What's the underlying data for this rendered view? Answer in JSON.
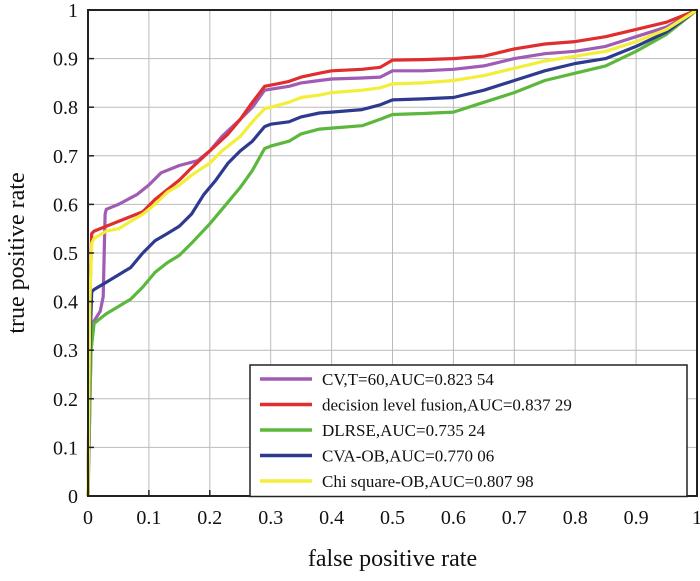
{
  "chart_data": {
    "type": "line",
    "xlabel": "false positive rate",
    "ylabel": "true positive rate",
    "xlim": [
      0,
      1
    ],
    "ylim": [
      0,
      1
    ],
    "x_ticks": [
      0,
      0.1,
      0.2,
      0.3,
      0.4,
      0.5,
      0.6,
      0.7,
      0.8,
      0.9,
      1
    ],
    "y_ticks": [
      0,
      0.1,
      0.2,
      0.3,
      0.4,
      0.5,
      0.6,
      0.7,
      0.8,
      0.9,
      1
    ],
    "x_tick_labels": [
      "0",
      "0.1",
      "0.2",
      "0.3",
      "0.4",
      "0.5",
      "0.6",
      "0.7",
      "0.8",
      "0.9",
      "1"
    ],
    "y_tick_labels": [
      "0",
      "0.1",
      "0.2",
      "0.3",
      "0.4",
      "0.5",
      "0.6",
      "0.7",
      "0.8",
      "0.9",
      "1"
    ],
    "grid": true,
    "legend_position": "bottom-right",
    "series": [
      {
        "name": "CV,T=60,AUC=0.823 54",
        "color": "#a05bb4",
        "points": [
          [
            0,
            0
          ],
          [
            0.005,
            0.3
          ],
          [
            0.01,
            0.36
          ],
          [
            0.015,
            0.37
          ],
          [
            0.02,
            0.38
          ],
          [
            0.025,
            0.41
          ],
          [
            0.028,
            0.58
          ],
          [
            0.03,
            0.59
          ],
          [
            0.05,
            0.6
          ],
          [
            0.08,
            0.62
          ],
          [
            0.1,
            0.64
          ],
          [
            0.12,
            0.665
          ],
          [
            0.15,
            0.68
          ],
          [
            0.18,
            0.69
          ],
          [
            0.2,
            0.71
          ],
          [
            0.22,
            0.74
          ],
          [
            0.25,
            0.775
          ],
          [
            0.27,
            0.8
          ],
          [
            0.29,
            0.835
          ],
          [
            0.3,
            0.837
          ],
          [
            0.33,
            0.843
          ],
          [
            0.35,
            0.85
          ],
          [
            0.38,
            0.855
          ],
          [
            0.4,
            0.858
          ],
          [
            0.45,
            0.86
          ],
          [
            0.48,
            0.862
          ],
          [
            0.5,
            0.875
          ],
          [
            0.55,
            0.875
          ],
          [
            0.6,
            0.878
          ],
          [
            0.65,
            0.885
          ],
          [
            0.7,
            0.9
          ],
          [
            0.75,
            0.91
          ],
          [
            0.8,
            0.915
          ],
          [
            0.85,
            0.925
          ],
          [
            0.9,
            0.945
          ],
          [
            0.95,
            0.965
          ],
          [
            1,
            1
          ]
        ]
      },
      {
        "name": "decision level fusion,AUC=0.837 29",
        "color": "#e02d2d",
        "points": [
          [
            0,
            0
          ],
          [
            0.003,
            0.4
          ],
          [
            0.006,
            0.54
          ],
          [
            0.01,
            0.545
          ],
          [
            0.03,
            0.555
          ],
          [
            0.06,
            0.57
          ],
          [
            0.09,
            0.585
          ],
          [
            0.11,
            0.61
          ],
          [
            0.13,
            0.63
          ],
          [
            0.15,
            0.65
          ],
          [
            0.17,
            0.675
          ],
          [
            0.2,
            0.71
          ],
          [
            0.23,
            0.745
          ],
          [
            0.25,
            0.775
          ],
          [
            0.27,
            0.81
          ],
          [
            0.29,
            0.843
          ],
          [
            0.31,
            0.848
          ],
          [
            0.33,
            0.853
          ],
          [
            0.35,
            0.862
          ],
          [
            0.38,
            0.87
          ],
          [
            0.4,
            0.875
          ],
          [
            0.45,
            0.878
          ],
          [
            0.48,
            0.882
          ],
          [
            0.5,
            0.897
          ],
          [
            0.55,
            0.898
          ],
          [
            0.6,
            0.9
          ],
          [
            0.65,
            0.905
          ],
          [
            0.7,
            0.92
          ],
          [
            0.75,
            0.93
          ],
          [
            0.8,
            0.935
          ],
          [
            0.85,
            0.945
          ],
          [
            0.9,
            0.96
          ],
          [
            0.95,
            0.975
          ],
          [
            1,
            1
          ]
        ]
      },
      {
        "name": "DLRSE,AUC=0.735 24",
        "color": "#5cb83c",
        "points": [
          [
            0,
            0
          ],
          [
            0.005,
            0.3
          ],
          [
            0.01,
            0.355
          ],
          [
            0.015,
            0.36
          ],
          [
            0.03,
            0.375
          ],
          [
            0.05,
            0.39
          ],
          [
            0.07,
            0.405
          ],
          [
            0.09,
            0.43
          ],
          [
            0.11,
            0.46
          ],
          [
            0.13,
            0.48
          ],
          [
            0.15,
            0.495
          ],
          [
            0.17,
            0.52
          ],
          [
            0.2,
            0.56
          ],
          [
            0.22,
            0.59
          ],
          [
            0.25,
            0.635
          ],
          [
            0.27,
            0.67
          ],
          [
            0.29,
            0.715
          ],
          [
            0.3,
            0.72
          ],
          [
            0.33,
            0.73
          ],
          [
            0.35,
            0.745
          ],
          [
            0.38,
            0.755
          ],
          [
            0.4,
            0.757
          ],
          [
            0.45,
            0.762
          ],
          [
            0.48,
            0.775
          ],
          [
            0.5,
            0.785
          ],
          [
            0.55,
            0.787
          ],
          [
            0.6,
            0.79
          ],
          [
            0.65,
            0.81
          ],
          [
            0.7,
            0.83
          ],
          [
            0.75,
            0.855
          ],
          [
            0.8,
            0.87
          ],
          [
            0.85,
            0.885
          ],
          [
            0.9,
            0.915
          ],
          [
            0.95,
            0.95
          ],
          [
            1,
            1
          ]
        ]
      },
      {
        "name": "CVA-OB,AUC=0.770 06",
        "color": "#2e3a8f",
        "points": [
          [
            0,
            0
          ],
          [
            0.003,
            0.3
          ],
          [
            0.006,
            0.42
          ],
          [
            0.01,
            0.425
          ],
          [
            0.03,
            0.44
          ],
          [
            0.05,
            0.455
          ],
          [
            0.07,
            0.47
          ],
          [
            0.09,
            0.5
          ],
          [
            0.11,
            0.525
          ],
          [
            0.13,
            0.54
          ],
          [
            0.15,
            0.555
          ],
          [
            0.17,
            0.58
          ],
          [
            0.19,
            0.62
          ],
          [
            0.21,
            0.65
          ],
          [
            0.23,
            0.685
          ],
          [
            0.25,
            0.71
          ],
          [
            0.27,
            0.73
          ],
          [
            0.29,
            0.76
          ],
          [
            0.3,
            0.765
          ],
          [
            0.33,
            0.77
          ],
          [
            0.35,
            0.78
          ],
          [
            0.38,
            0.788
          ],
          [
            0.4,
            0.79
          ],
          [
            0.45,
            0.795
          ],
          [
            0.48,
            0.805
          ],
          [
            0.5,
            0.815
          ],
          [
            0.55,
            0.817
          ],
          [
            0.6,
            0.82
          ],
          [
            0.65,
            0.835
          ],
          [
            0.7,
            0.855
          ],
          [
            0.75,
            0.875
          ],
          [
            0.8,
            0.89
          ],
          [
            0.85,
            0.9
          ],
          [
            0.9,
            0.925
          ],
          [
            0.95,
            0.955
          ],
          [
            1,
            1
          ]
        ]
      },
      {
        "name": "Chi square-OB,AUC=0.807 98",
        "color": "#f2ee3a",
        "points": [
          [
            0,
            0
          ],
          [
            0.003,
            0.4
          ],
          [
            0.006,
            0.52
          ],
          [
            0.01,
            0.53
          ],
          [
            0.03,
            0.545
          ],
          [
            0.05,
            0.55
          ],
          [
            0.07,
            0.565
          ],
          [
            0.09,
            0.58
          ],
          [
            0.11,
            0.6
          ],
          [
            0.13,
            0.625
          ],
          [
            0.15,
            0.64
          ],
          [
            0.17,
            0.66
          ],
          [
            0.2,
            0.685
          ],
          [
            0.22,
            0.71
          ],
          [
            0.25,
            0.74
          ],
          [
            0.27,
            0.77
          ],
          [
            0.29,
            0.797
          ],
          [
            0.3,
            0.8
          ],
          [
            0.33,
            0.81
          ],
          [
            0.35,
            0.82
          ],
          [
            0.38,
            0.825
          ],
          [
            0.4,
            0.83
          ],
          [
            0.45,
            0.835
          ],
          [
            0.48,
            0.84
          ],
          [
            0.5,
            0.848
          ],
          [
            0.55,
            0.85
          ],
          [
            0.6,
            0.855
          ],
          [
            0.65,
            0.865
          ],
          [
            0.7,
            0.88
          ],
          [
            0.75,
            0.895
          ],
          [
            0.8,
            0.905
          ],
          [
            0.85,
            0.915
          ],
          [
            0.9,
            0.935
          ],
          [
            0.95,
            0.96
          ],
          [
            1,
            1
          ]
        ]
      }
    ]
  }
}
